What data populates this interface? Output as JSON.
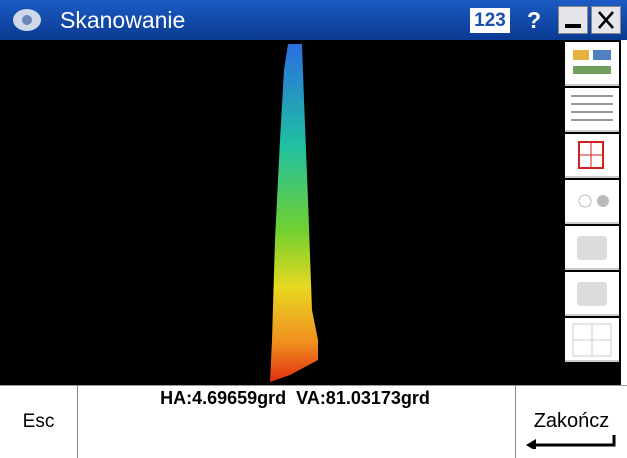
{
  "title_bar": {
    "title": "Skanowanie",
    "input_mode": "123",
    "help": "?"
  },
  "status": {
    "angles": "HA:4.69659grd  VA:81.03173grd"
  },
  "buttons": {
    "escape": "Esc",
    "finish": "Zakończ"
  }
}
